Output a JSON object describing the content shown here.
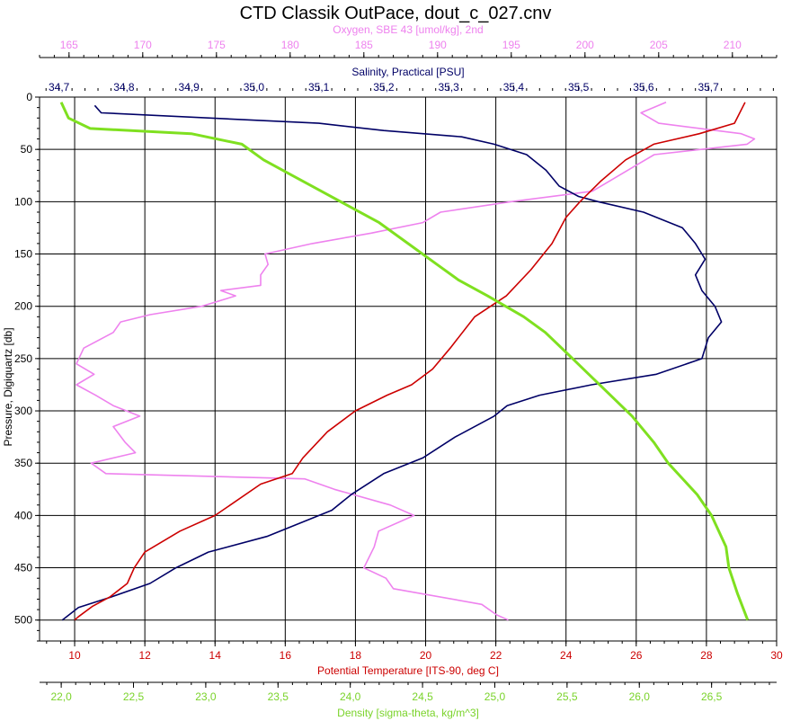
{
  "title": "CTD Classik OutPace, dout_c_027.cnv",
  "colors": {
    "oxygen": "#ee82ee",
    "salinity": "#000066",
    "temperature": "#cc0000",
    "density": "#7fe020",
    "grid": "#000000",
    "text": "#000000"
  },
  "chart_data": {
    "type": "line",
    "title": "CTD Classik OutPace, dout_c_027.cnv",
    "grid": true,
    "y_axis": {
      "label": "Pressure, Digiquartz [db]",
      "range": [
        0,
        520
      ],
      "inverted": true,
      "ticks": [
        0,
        50,
        100,
        150,
        200,
        250,
        300,
        350,
        400,
        450,
        500
      ]
    },
    "x_axes": [
      {
        "id": "oxygen",
        "label": "Oxygen, SBE 43 [umol/kg], 2nd",
        "position": "top-outer",
        "range": [
          163,
          213
        ],
        "ticks": [
          165,
          170,
          175,
          180,
          185,
          190,
          195,
          200,
          205,
          210
        ]
      },
      {
        "id": "salinity",
        "label": "Salinity, Practical [PSU]",
        "position": "top-inner",
        "range": [
          34.67,
          35.805
        ],
        "ticks": [
          "34,7",
          "34,8",
          "34,9",
          "35,0",
          "35,1",
          "35,2",
          "35,3",
          "35,4",
          "35,5",
          "35,6",
          "35,7"
        ],
        "tick_values": [
          34.7,
          34.8,
          34.9,
          35.0,
          35.1,
          35.2,
          35.3,
          35.4,
          35.5,
          35.6,
          35.7
        ]
      },
      {
        "id": "temperature",
        "label": "Potential Temperature [ITS-90, deg C]",
        "position": "bottom-inner",
        "range": [
          9,
          30
        ],
        "ticks": [
          10,
          12,
          14,
          16,
          18,
          20,
          22,
          24,
          26,
          28,
          30
        ]
      },
      {
        "id": "density",
        "label": "Density [sigma-theta, kg/m^3]",
        "position": "bottom-outer",
        "range": [
          21.85,
          26.95
        ],
        "ticks": [
          "22,0",
          "22,5",
          "23,0",
          "23,5",
          "24,0",
          "24,5",
          "25,0",
          "25,5",
          "26,0",
          "26,5"
        ],
        "tick_values": [
          22.0,
          22.5,
          23.0,
          23.5,
          24.0,
          24.5,
          25.0,
          25.5,
          26.0,
          26.5
        ]
      }
    ],
    "series": [
      {
        "name": "Oxygen, SBE 43 [umol/kg], 2nd",
        "axis": "oxygen",
        "points": [
          [
            205.5,
            5
          ],
          [
            203.8,
            15
          ],
          [
            205.0,
            25
          ],
          [
            210.6,
            35
          ],
          [
            211.5,
            40
          ],
          [
            211.0,
            45
          ],
          [
            204.7,
            55
          ],
          [
            203.5,
            65
          ],
          [
            201.7,
            80
          ],
          [
            200.5,
            90
          ],
          [
            195.0,
            100
          ],
          [
            190.2,
            110
          ],
          [
            189.0,
            120
          ],
          [
            185.5,
            130
          ],
          [
            181.5,
            140
          ],
          [
            178.3,
            150
          ],
          [
            178.5,
            160
          ],
          [
            178.0,
            170
          ],
          [
            178.0,
            180
          ],
          [
            175.3,
            185
          ],
          [
            176.3,
            190
          ],
          [
            174.0,
            200
          ],
          [
            170.5,
            208
          ],
          [
            168.5,
            215
          ],
          [
            168.0,
            225
          ],
          [
            166.0,
            240
          ],
          [
            165.5,
            255
          ],
          [
            166.7,
            265
          ],
          [
            165.5,
            275
          ],
          [
            166.8,
            285
          ],
          [
            168.0,
            295
          ],
          [
            169.8,
            305
          ],
          [
            168.0,
            315
          ],
          [
            168.8,
            330
          ],
          [
            169.5,
            340
          ],
          [
            166.5,
            350
          ],
          [
            167.5,
            360
          ],
          [
            181.0,
            365
          ],
          [
            183.0,
            375
          ],
          [
            186.8,
            390
          ],
          [
            188.4,
            400
          ],
          [
            186.0,
            415
          ],
          [
            185.7,
            430
          ],
          [
            185.0,
            450
          ],
          [
            186.5,
            460
          ],
          [
            187.0,
            470
          ],
          [
            193.0,
            485
          ],
          [
            194.0,
            495
          ],
          [
            194.8,
            500
          ]
        ]
      },
      {
        "name": "Salinity, Practical [PSU]",
        "axis": "salinity",
        "points": [
          [
            34.755,
            8
          ],
          [
            34.765,
            15
          ],
          [
            35.1,
            25
          ],
          [
            35.2,
            32
          ],
          [
            35.32,
            38
          ],
          [
            35.37,
            45
          ],
          [
            35.42,
            55
          ],
          [
            35.45,
            70
          ],
          [
            35.47,
            85
          ],
          [
            35.5,
            95
          ],
          [
            35.53,
            100
          ],
          [
            35.6,
            110
          ],
          [
            35.66,
            125
          ],
          [
            35.68,
            140
          ],
          [
            35.695,
            155
          ],
          [
            35.68,
            170
          ],
          [
            35.69,
            185
          ],
          [
            35.71,
            200
          ],
          [
            35.72,
            215
          ],
          [
            35.7,
            230
          ],
          [
            35.69,
            250
          ],
          [
            35.62,
            265
          ],
          [
            35.52,
            275
          ],
          [
            35.44,
            285
          ],
          [
            35.39,
            295
          ],
          [
            35.37,
            305
          ],
          [
            35.31,
            325
          ],
          [
            35.26,
            345
          ],
          [
            35.2,
            360
          ],
          [
            35.15,
            380
          ],
          [
            35.12,
            395
          ],
          [
            35.02,
            420
          ],
          [
            34.93,
            435
          ],
          [
            34.88,
            450
          ],
          [
            34.84,
            465
          ],
          [
            34.78,
            478
          ],
          [
            34.73,
            488
          ],
          [
            34.705,
            500
          ]
        ]
      },
      {
        "name": "Potential Temperature [ITS-90, deg C]",
        "axis": "temperature",
        "points": [
          [
            29.1,
            5
          ],
          [
            28.8,
            25
          ],
          [
            27.8,
            35
          ],
          [
            26.5,
            45
          ],
          [
            25.7,
            60
          ],
          [
            25.0,
            80
          ],
          [
            24.4,
            100
          ],
          [
            24.0,
            115
          ],
          [
            23.6,
            140
          ],
          [
            23.0,
            165
          ],
          [
            22.3,
            190
          ],
          [
            21.4,
            210
          ],
          [
            20.7,
            240
          ],
          [
            20.2,
            260
          ],
          [
            19.6,
            275
          ],
          [
            18.9,
            285
          ],
          [
            18.0,
            300
          ],
          [
            17.2,
            320
          ],
          [
            16.5,
            345
          ],
          [
            16.2,
            360
          ],
          [
            15.3,
            370
          ],
          [
            14.0,
            400
          ],
          [
            13.0,
            415
          ],
          [
            12.0,
            435
          ],
          [
            11.7,
            450
          ],
          [
            11.5,
            465
          ],
          [
            11.0,
            478
          ],
          [
            10.5,
            487
          ],
          [
            10.1,
            497
          ],
          [
            10.0,
            500
          ]
        ]
      },
      {
        "name": "Density [sigma-theta, kg/m^3]",
        "axis": "density",
        "points": [
          [
            22.0,
            5
          ],
          [
            22.05,
            20
          ],
          [
            22.2,
            30
          ],
          [
            22.9,
            35
          ],
          [
            23.25,
            45
          ],
          [
            23.4,
            60
          ],
          [
            23.6,
            75
          ],
          [
            23.8,
            90
          ],
          [
            24.0,
            105
          ],
          [
            24.2,
            120
          ],
          [
            24.4,
            140
          ],
          [
            24.6,
            160
          ],
          [
            24.75,
            175
          ],
          [
            24.95,
            190
          ],
          [
            25.2,
            210
          ],
          [
            25.35,
            225
          ],
          [
            25.5,
            245
          ],
          [
            25.65,
            265
          ],
          [
            25.8,
            285
          ],
          [
            25.95,
            305
          ],
          [
            26.1,
            330
          ],
          [
            26.2,
            350
          ],
          [
            26.4,
            380
          ],
          [
            26.5,
            400
          ],
          [
            26.6,
            430
          ],
          [
            26.62,
            450
          ],
          [
            26.68,
            475
          ],
          [
            26.75,
            500
          ]
        ]
      }
    ]
  }
}
